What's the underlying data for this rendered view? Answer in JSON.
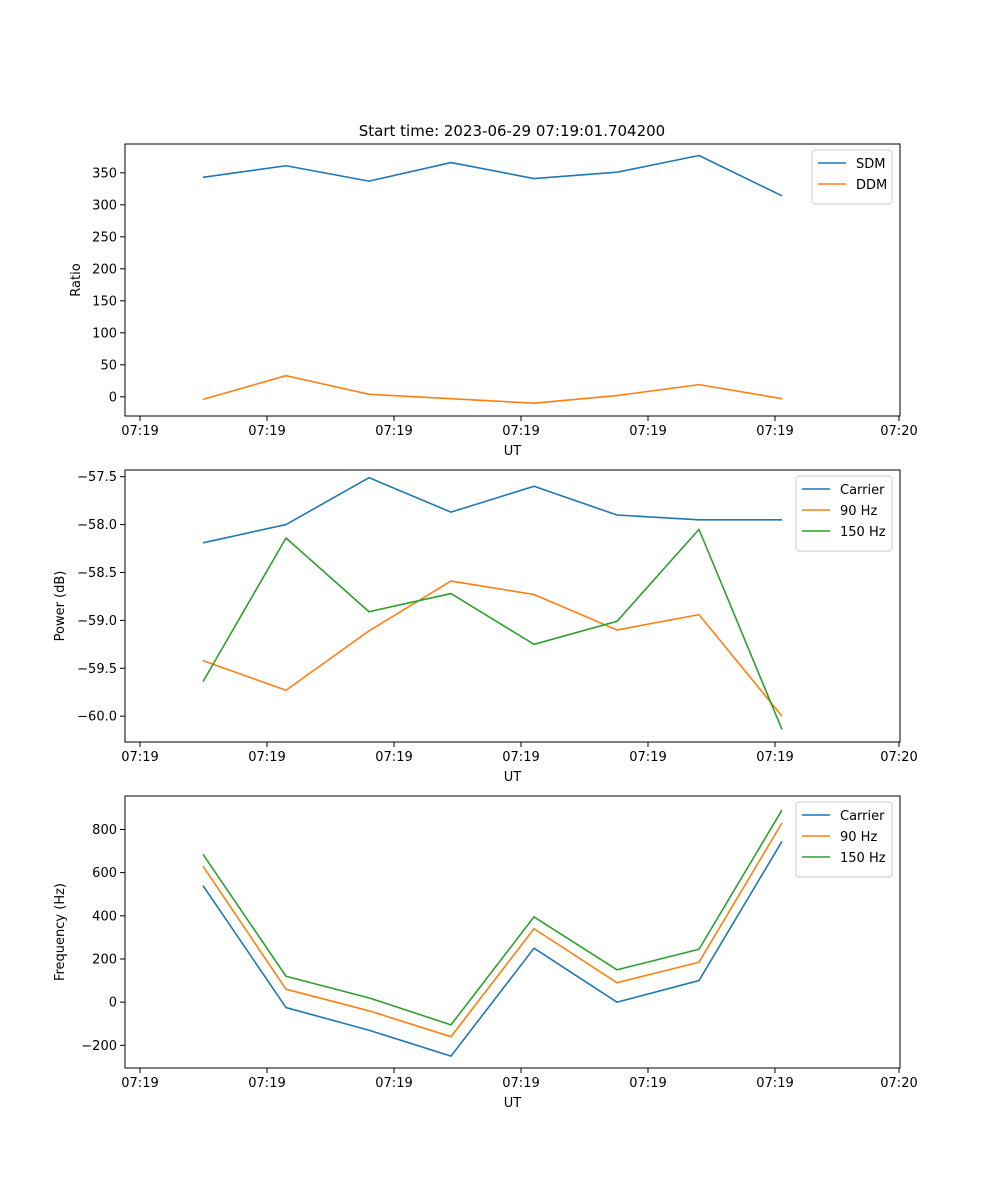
{
  "figure": {
    "title": "Start time: 2023-06-29 07:19:01.704200"
  },
  "colors": {
    "blue": "#1f77b4",
    "orange": "#ff7f0e",
    "green": "#2ca02c",
    "axis": "#000000"
  },
  "chart_data": [
    {
      "type": "line",
      "title": "Start time: 2023-06-29 07:19:01.704200",
      "xlabel": "UT",
      "ylabel": "Ratio",
      "x_tick_labels": [
        "07:19",
        "07:19",
        "07:19",
        "07:19",
        "07:19",
        "07:19",
        "07:20"
      ],
      "y_ticks": [
        0,
        50,
        100,
        150,
        200,
        250,
        300,
        350
      ],
      "ylim": [
        -30,
        395
      ],
      "legend_position": "top-right",
      "series": [
        {
          "name": "SDM",
          "color": "#1f77b4",
          "values": [
            343,
            361,
            337,
            366,
            341,
            351,
            377,
            314
          ]
        },
        {
          "name": "DDM",
          "color": "#ff7f0e",
          "values": [
            -4,
            33,
            4,
            -3,
            -10,
            2,
            19,
            -3
          ]
        }
      ]
    },
    {
      "type": "line",
      "xlabel": "UT",
      "ylabel": "Power (dB)",
      "x_tick_labels": [
        "07:19",
        "07:19",
        "07:19",
        "07:19",
        "07:19",
        "07:19",
        "07:20"
      ],
      "y_ticks": [
        -60.0,
        -59.5,
        -59.0,
        -58.5,
        -58.0,
        -57.5
      ],
      "y_tick_labels": [
        "−60.0",
        "−59.5",
        "−59.0",
        "−58.5",
        "−58.0",
        "−57.5"
      ],
      "ylim": [
        -60.27,
        -57.43
      ],
      "legend_position": "top-right",
      "series": [
        {
          "name": "Carrier",
          "color": "#1f77b4",
          "values": [
            -58.19,
            -58.0,
            -57.51,
            -57.87,
            -57.6,
            -57.9,
            -57.95,
            -57.95
          ]
        },
        {
          "name": "90 Hz",
          "color": "#ff7f0e",
          "values": [
            -59.42,
            -59.73,
            -59.11,
            -58.59,
            -58.73,
            -59.1,
            -58.94,
            -60.0
          ]
        },
        {
          "name": "150 Hz",
          "color": "#2ca02c",
          "values": [
            -59.64,
            -58.14,
            -58.91,
            -58.72,
            -59.25,
            -59.01,
            -58.05,
            -60.14
          ]
        }
      ]
    },
    {
      "type": "line",
      "xlabel": "UT",
      "ylabel": "Frequency (Hz)",
      "x_tick_labels": [
        "07:19",
        "07:19",
        "07:19",
        "07:19",
        "07:19",
        "07:19",
        "07:20"
      ],
      "y_ticks": [
        -200,
        0,
        200,
        400,
        600,
        800
      ],
      "y_tick_labels": [
        "−200",
        "0",
        "200",
        "400",
        "600",
        "800"
      ],
      "ylim": [
        -305,
        955
      ],
      "legend_position": "top-right",
      "series": [
        {
          "name": "Carrier",
          "color": "#1f77b4",
          "values": [
            540,
            -25,
            -130,
            -250,
            250,
            0,
            100,
            745
          ]
        },
        {
          "name": "90 Hz",
          "color": "#ff7f0e",
          "values": [
            630,
            60,
            -40,
            -160,
            340,
            90,
            185,
            830
          ]
        },
        {
          "name": "150 Hz",
          "color": "#2ca02c",
          "values": [
            685,
            120,
            20,
            -105,
            395,
            150,
            245,
            890
          ]
        }
      ]
    }
  ]
}
